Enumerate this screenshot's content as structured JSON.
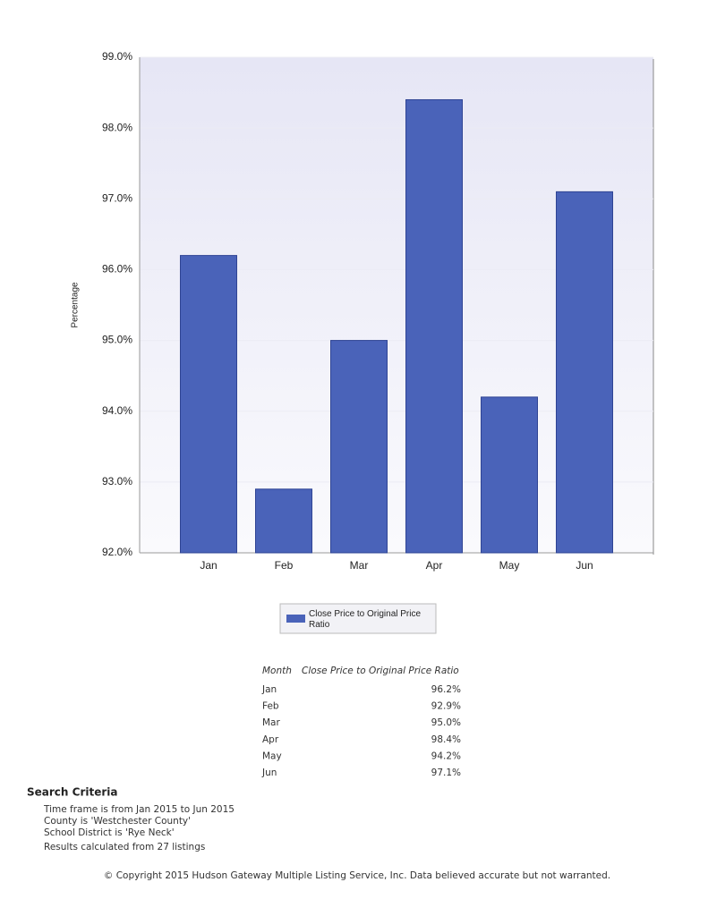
{
  "chart_data": {
    "type": "bar",
    "y_label": "Percentage",
    "categories": [
      "Jan",
      "Feb",
      "Mar",
      "Apr",
      "May",
      "Jun"
    ],
    "series": [
      {
        "name": "Close Price to Original Price Ratio",
        "color": "#4a63b9",
        "values": [
          96.2,
          92.9,
          95.0,
          98.4,
          94.2,
          97.1
        ]
      }
    ],
    "ylim": [
      92,
      99
    ],
    "yticks": [
      {
        "value": 92,
        "label": "92.0%"
      },
      {
        "value": 93,
        "label": "93.0%"
      },
      {
        "value": 94,
        "label": "94.0%"
      },
      {
        "value": 95,
        "label": "95.0%"
      },
      {
        "value": 96,
        "label": "96.0%"
      },
      {
        "value": 97,
        "label": "97.0%"
      },
      {
        "value": 98,
        "label": "98.0%"
      },
      {
        "value": 99,
        "label": "99.0%"
      }
    ],
    "grid": true
  },
  "table": {
    "header": [
      "Month",
      "Close Price to Original Price Ratio"
    ],
    "rows": [
      [
        "Jan",
        "96.2%"
      ],
      [
        "Feb",
        "92.9%"
      ],
      [
        "Mar",
        "95.0%"
      ],
      [
        "Apr",
        "98.4%"
      ],
      [
        "May",
        "94.2%"
      ],
      [
        "Jun",
        "97.1%"
      ]
    ]
  },
  "search_criteria": {
    "title": "Search Criteria",
    "lines": [
      "Time frame is from Jan 2015 to Jun 2015",
      "County is 'Westchester County'",
      "School District is 'Rye Neck'",
      "Results calculated from 27 listings"
    ]
  },
  "footer": "© Copyright 2015 Hudson Gateway Multiple Listing Service, Inc. Data believed accurate but not warranted."
}
